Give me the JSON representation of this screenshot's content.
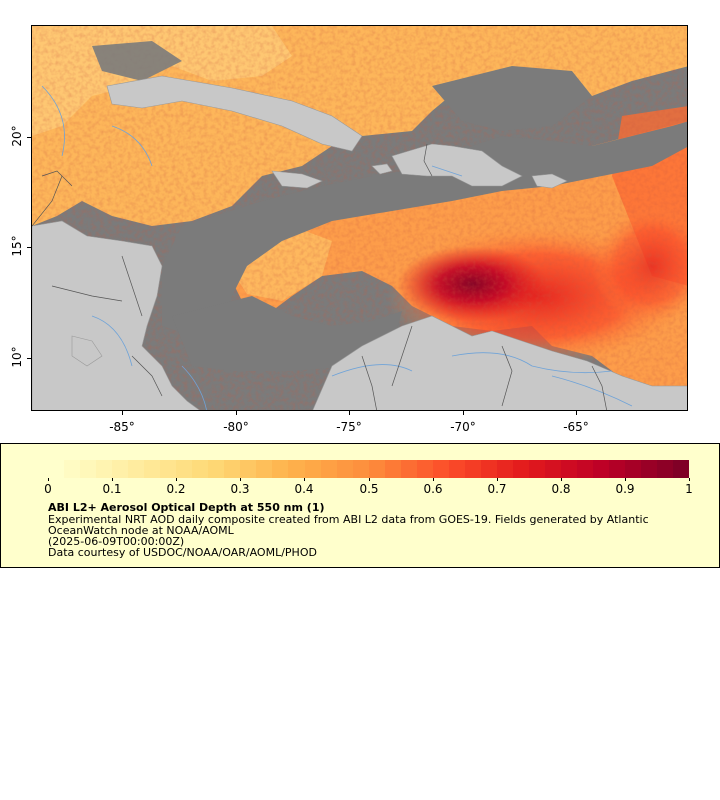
{
  "map": {
    "y_ticks": [
      {
        "label": "20°",
        "lat": 20
      },
      {
        "label": "15°",
        "lat": 15
      },
      {
        "label": "10°",
        "lat": 10
      }
    ],
    "x_ticks": [
      {
        "label": "-85°",
        "lon": -85
      },
      {
        "label": "-80°",
        "lon": -80
      },
      {
        "label": "-75°",
        "lon": -75
      },
      {
        "label": "-70°",
        "lon": -70
      },
      {
        "label": "-65°",
        "lon": -65
      }
    ],
    "colors": {
      "no_data": "#7b7b7b",
      "land": "#c8c8c8",
      "river": "#6fa3d8",
      "border": "#808080"
    }
  },
  "legend": {
    "colorbar": {
      "min": 0,
      "max": 1,
      "tick_labels": [
        "0",
        "0.1",
        "0.2",
        "0.3",
        "0.4",
        "0.5",
        "0.6",
        "0.7",
        "0.8",
        "0.9",
        "1"
      ],
      "colors": [
        "#ffffcc",
        "#ffeda0",
        "#fed976",
        "#feb24c",
        "#fd8d3c",
        "#fc4e2a",
        "#e31a1c",
        "#bd0026",
        "#800026"
      ]
    },
    "title": "ABI L2+ Aerosol Optical Depth at 550 nm (1)",
    "desc_line1": "Experimental NRT AOD daily composite created from ABI L2 data from GOES-19. Fields generated by Atlantic",
    "desc_line2": "OceanWatch node at NOAA/AOML",
    "desc_line3": "(2025-06-09T00:00:00Z)",
    "desc_line4": "Data courtesy of USDOC/NOAA/OAR/AOML/PHOD"
  }
}
